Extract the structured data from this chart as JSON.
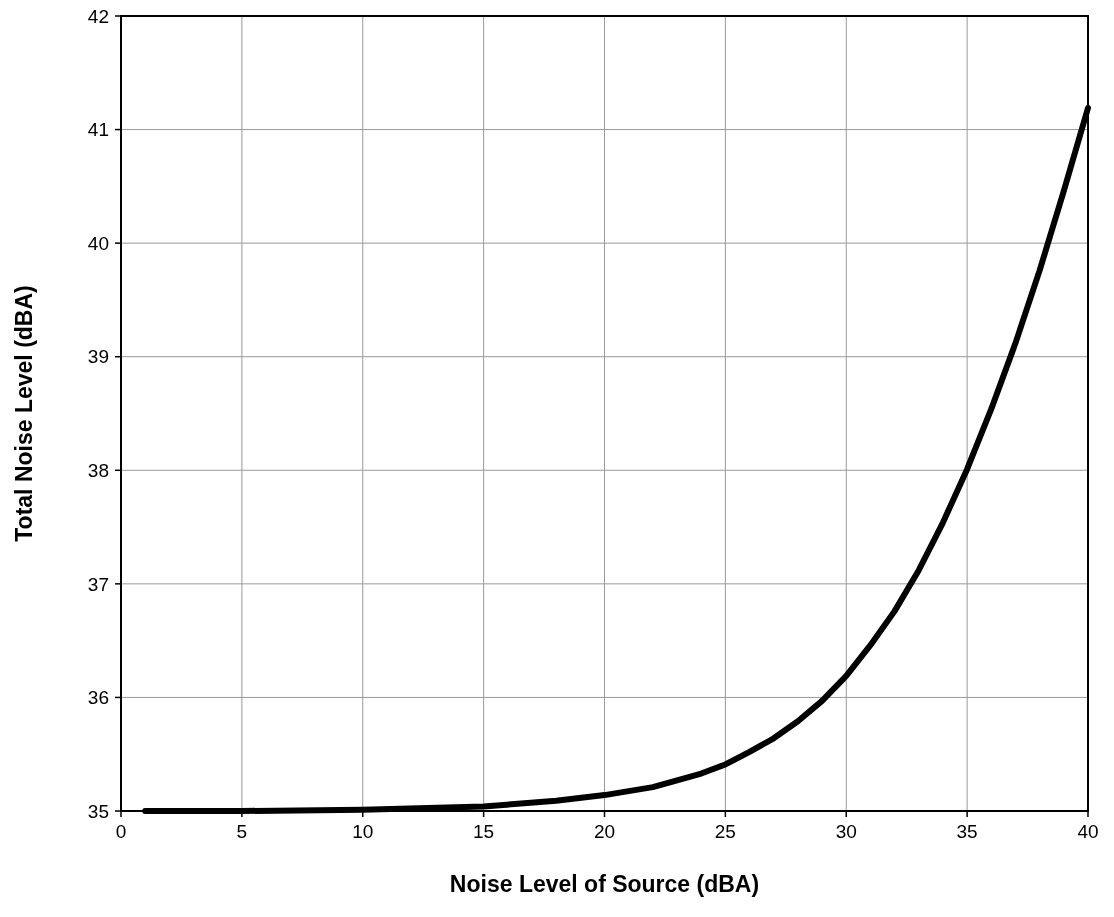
{
  "chart_data": {
    "type": "line",
    "xlabel": "Noise Level of Source (dBA)",
    "ylabel": "Total Noise Level (dBA)",
    "x": [
      1,
      2,
      5,
      10,
      15,
      18,
      20,
      22,
      24,
      25,
      26,
      27,
      28,
      29,
      30,
      31,
      32,
      33,
      34,
      35,
      36,
      37,
      38,
      39,
      40
    ],
    "series": [
      {
        "color": "#000000",
        "values": [
          35.0,
          35.0,
          35.0,
          35.01,
          35.04,
          35.09,
          35.14,
          35.21,
          35.33,
          35.41,
          35.52,
          35.64,
          35.79,
          35.97,
          36.19,
          36.46,
          36.76,
          37.12,
          37.54,
          38.01,
          38.54,
          39.12,
          39.76,
          40.46,
          41.19
        ]
      }
    ],
    "xlim": [
      0,
      40
    ],
    "xticks": [
      0,
      5,
      10,
      15,
      20,
      25,
      30,
      35,
      40
    ],
    "ylim": [
      35,
      42
    ],
    "yticks": [
      35,
      36,
      37,
      38,
      39,
      40,
      41,
      42
    ],
    "grid": true,
    "marker": "none",
    "line_style": "solid"
  }
}
